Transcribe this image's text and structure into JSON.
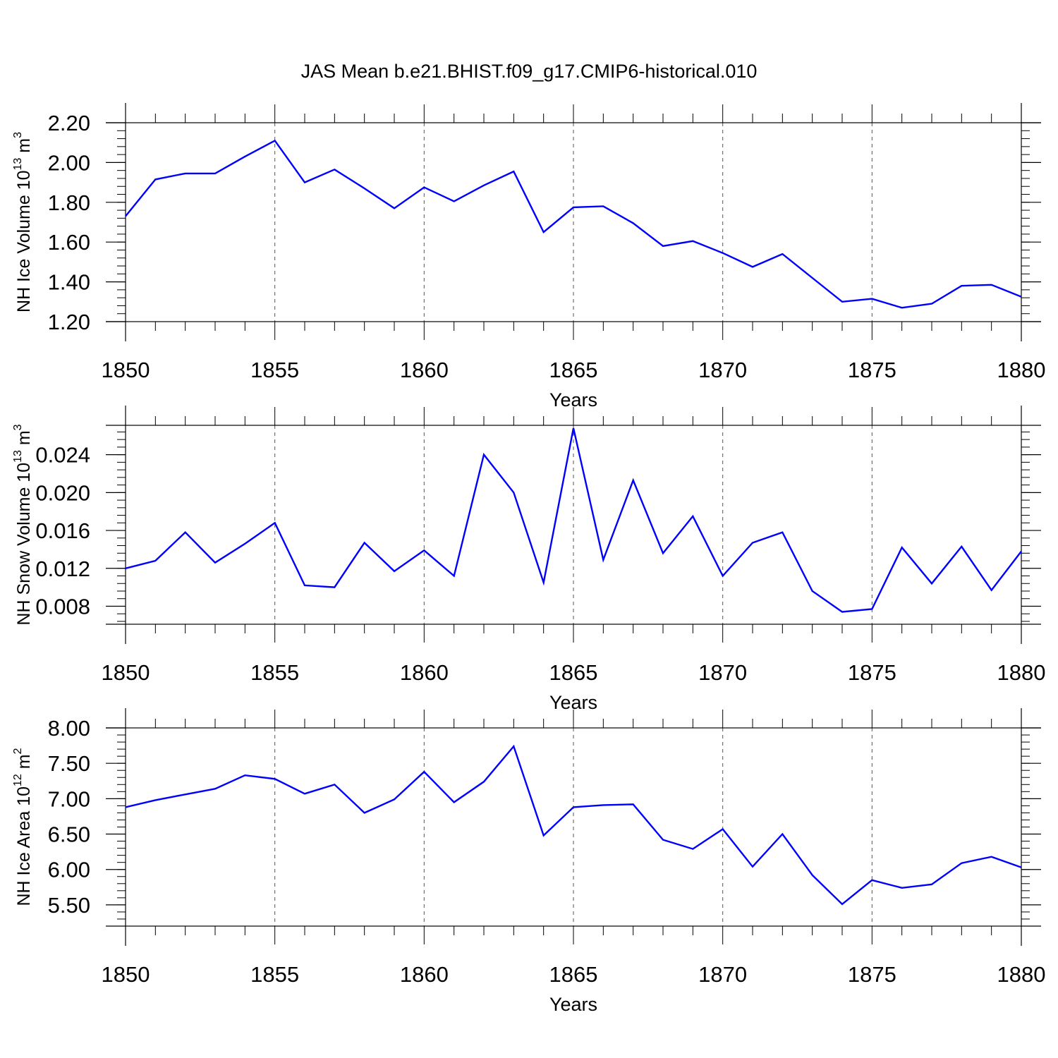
{
  "title": "JAS Mean b.e21.BHIST.f09_g17.CMIP6-historical.010",
  "colors": {
    "line": "#0000ff",
    "axis": "#000000",
    "grid": "#555555"
  },
  "chart_data": [
    {
      "type": "line",
      "xlabel": "Years",
      "ylabel": {
        "text": "NH Ice Volume 10",
        "exponent": "13",
        "unit": " m",
        "unit_exponent": "3"
      },
      "xlim": [
        1850,
        1880
      ],
      "ylim": [
        1.2,
        2.2
      ],
      "xticks": [
        "1850",
        "1855",
        "1860",
        "1865",
        "1870",
        "1875",
        "1880"
      ],
      "yticks": [
        "1.20",
        "1.40",
        "1.60",
        "1.80",
        "2.00",
        "2.20"
      ],
      "grid": "vertical dashed at major x ticks",
      "x": [
        1850,
        1851,
        1852,
        1853,
        1854,
        1855,
        1856,
        1857,
        1858,
        1859,
        1860,
        1861,
        1862,
        1863,
        1864,
        1865,
        1866,
        1867,
        1868,
        1869,
        1870,
        1871,
        1872,
        1873,
        1874,
        1875,
        1876,
        1877,
        1878,
        1879,
        1880
      ],
      "values": [
        1.73,
        1.915,
        1.945,
        1.945,
        2.03,
        2.11,
        1.9,
        1.965,
        1.87,
        1.77,
        1.875,
        1.805,
        1.885,
        1.955,
        1.65,
        1.775,
        1.78,
        1.695,
        1.58,
        1.605,
        1.545,
        1.475,
        1.54,
        1.42,
        1.3,
        1.315,
        1.27,
        1.29,
        1.38,
        1.385,
        1.325
      ]
    },
    {
      "type": "line",
      "xlabel": "Years",
      "ylabel": {
        "text": "NH Snow Volume 10",
        "exponent": "13",
        "unit": " m",
        "unit_exponent": "3"
      },
      "xlim": [
        1850,
        1880
      ],
      "ylim": [
        0.0061,
        0.0271
      ],
      "xticks": [
        "1850",
        "1855",
        "1860",
        "1865",
        "1870",
        "1875",
        "1880"
      ],
      "yticks": [
        "0.008",
        "0.012",
        "0.016",
        "0.020",
        "0.024"
      ],
      "grid": "vertical dashed at major x ticks",
      "x": [
        1850,
        1851,
        1852,
        1853,
        1854,
        1855,
        1856,
        1857,
        1858,
        1859,
        1860,
        1861,
        1862,
        1863,
        1864,
        1865,
        1866,
        1867,
        1868,
        1869,
        1870,
        1871,
        1872,
        1873,
        1874,
        1875,
        1876,
        1877,
        1878,
        1879,
        1880
      ],
      "values": [
        0.012,
        0.0128,
        0.0158,
        0.0126,
        0.0146,
        0.0168,
        0.0102,
        0.01,
        0.0147,
        0.0117,
        0.0139,
        0.0112,
        0.024,
        0.02,
        0.0105,
        0.0268,
        0.0129,
        0.0213,
        0.0136,
        0.0175,
        0.0112,
        0.0147,
        0.0158,
        0.0096,
        0.0074,
        0.0077,
        0.0142,
        0.0104,
        0.0143,
        0.0097,
        0.0138
      ]
    },
    {
      "type": "line",
      "xlabel": "Years",
      "ylabel": {
        "text": "NH Ice Area 10",
        "exponent": "12",
        "unit": " m",
        "unit_exponent": "2"
      },
      "xlim": [
        1850,
        1880
      ],
      "ylim": [
        5.2,
        8.0
      ],
      "xticks": [
        "1850",
        "1855",
        "1860",
        "1865",
        "1870",
        "1875",
        "1880"
      ],
      "yticks": [
        "5.50",
        "6.00",
        "6.50",
        "7.00",
        "7.50",
        "8.00"
      ],
      "grid": "vertical dashed at major x ticks",
      "x": [
        1850,
        1851,
        1852,
        1853,
        1854,
        1855,
        1856,
        1857,
        1858,
        1859,
        1860,
        1861,
        1862,
        1863,
        1864,
        1865,
        1866,
        1867,
        1868,
        1869,
        1870,
        1871,
        1872,
        1873,
        1874,
        1875,
        1876,
        1877,
        1878,
        1879,
        1880
      ],
      "values": [
        6.88,
        6.98,
        7.06,
        7.14,
        7.33,
        7.28,
        7.07,
        7.2,
        6.8,
        6.99,
        7.38,
        6.95,
        7.24,
        7.74,
        6.48,
        6.88,
        6.91,
        6.92,
        6.42,
        6.29,
        6.57,
        6.04,
        6.5,
        5.92,
        5.51,
        5.85,
        5.74,
        5.79,
        6.09,
        6.18,
        6.03
      ]
    }
  ]
}
